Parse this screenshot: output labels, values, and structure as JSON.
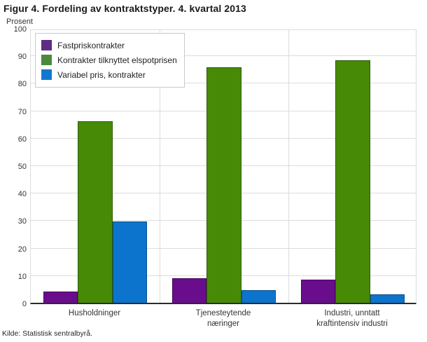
{
  "source": "Kilde: Statistisk sentralbyrå.",
  "colors": {
    "background": "#ffffff",
    "title_text": "#1a1a1a",
    "axis_text": "#333333",
    "gridline": "#dcdcdc",
    "axis_line": "#2b2b2b",
    "legend_border": "#c9c9c9",
    "series_purple": "#690d8c",
    "series_green": "#478a06",
    "series_blue": "#0c74cd"
  },
  "chart_data": {
    "type": "bar",
    "title": "Figur 4. Fordeling av kontraktstyper. 4. kvartal 2013",
    "xlabel": "",
    "ylabel": "Prosent",
    "ylim": [
      0,
      100
    ],
    "ytick_step": 10,
    "grid": true,
    "legend_position": "top-left",
    "categories": [
      "Husholdninger",
      "Tjenesteytende næringer",
      "Industri, unntatt kraftintensiv industri"
    ],
    "category_label_lines": [
      [
        "Husholdninger"
      ],
      [
        "Tjenesteytende",
        "næringer"
      ],
      [
        "Industri, unntatt",
        "kraftintensiv industri"
      ]
    ],
    "series": [
      {
        "name": "Fastpriskontrakter",
        "color": "#690d8c",
        "border_color": "#43085c",
        "legend_color": "#5e2c85",
        "values": [
          4.0,
          9.0,
          8.3
        ]
      },
      {
        "name": "Kontrakter tilknyttet elspotprisen",
        "color": "#478a06",
        "border_color": "#2e5a03",
        "legend_color": "#4b8a3b",
        "values": [
          66.0,
          85.8,
          88.3
        ]
      },
      {
        "name": "Variabel pris, kontrakter",
        "color": "#0c74cd",
        "border_color": "#07508f",
        "legend_color": "#1377cf",
        "values": [
          29.5,
          4.7,
          3.0
        ]
      }
    ]
  }
}
